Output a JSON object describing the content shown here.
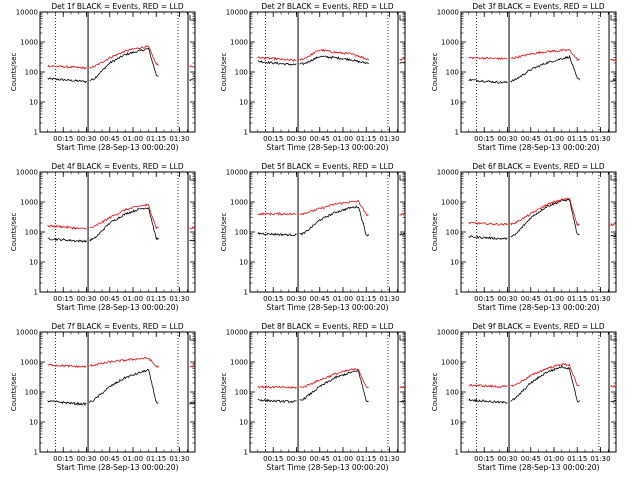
{
  "colors": {
    "events": "#000000",
    "lld": "#e01010"
  },
  "chart_data": [
    {
      "type": "line",
      "title": "Det 1f BLACK = Events, RED = LLD",
      "xlabel": "Start Time (28-Sep-13 00:00:20)",
      "ylabel": "Counts/sec",
      "yscale": "log",
      "ylim": [
        1,
        10000
      ],
      "ytick_labels": [
        "1",
        "10",
        "100",
        "1000",
        "10000"
      ],
      "xtick_labels": [
        "00:15",
        "00:30",
        "00:45",
        "01:00",
        "01:15",
        "01:30"
      ],
      "x": [
        "00:05",
        "00:15",
        "00:25",
        "00:30",
        "00:35",
        "00:45",
        "00:55",
        "01:05",
        "01:10",
        "01:15",
        "01:25",
        "01:35",
        "01:40"
      ],
      "series": [
        {
          "values": [
            60,
            55,
            50,
            48,
            60,
            200,
            380,
            520,
            600,
            80,
            45,
            50,
            60
          ]
        },
        {
          "values": [
            160,
            150,
            140,
            135,
            150,
            300,
            500,
            650,
            700,
            180,
            150,
            150,
            160
          ]
        }
      ]
    },
    {
      "type": "line",
      "title": "Det 2f BLACK = Events, RED = LLD",
      "xlabel": "Start Time (28-Sep-13 00:00:20)",
      "ylabel": "Counts/sec",
      "yscale": "log",
      "ylim": [
        1,
        10000
      ],
      "ytick_labels": [
        "1",
        "10",
        "100",
        "1000",
        "10000"
      ],
      "xtick_labels": [
        "00:15",
        "00:30",
        "00:45",
        "01:00",
        "01:15",
        "01:30"
      ],
      "x": [
        "00:05",
        "00:15",
        "00:25",
        "00:30",
        "00:35",
        "00:45",
        "00:55",
        "01:05",
        "01:10",
        "01:15",
        "01:25",
        "01:35",
        "01:40"
      ],
      "series": [
        {
          "values": [
            230,
            200,
            180,
            175,
            190,
            330,
            300,
            260,
            220,
            200,
            200,
            200,
            210
          ]
        },
        {
          "values": [
            300,
            280,
            250,
            240,
            280,
            550,
            450,
            400,
            350,
            270,
            260,
            260,
            270
          ]
        }
      ]
    },
    {
      "type": "line",
      "title": "Det 3f BLACK = Events, RED = LLD",
      "xlabel": "Start Time (28-Sep-13 00:00:20)",
      "ylabel": "Counts/sec",
      "yscale": "log",
      "ylim": [
        1,
        10000
      ],
      "ytick_labels": [
        "1",
        "10",
        "100",
        "1000",
        "10000"
      ],
      "xtick_labels": [
        "00:15",
        "00:30",
        "00:45",
        "01:00",
        "01:15",
        "01:30"
      ],
      "x": [
        "00:05",
        "00:15",
        "00:25",
        "00:30",
        "00:35",
        "00:45",
        "00:55",
        "01:05",
        "01:10",
        "01:15",
        "01:25",
        "01:35",
        "01:40"
      ],
      "series": [
        {
          "values": [
            55,
            50,
            45,
            45,
            55,
            120,
            200,
            280,
            320,
            60,
            45,
            50,
            55
          ]
        },
        {
          "values": [
            300,
            290,
            280,
            280,
            300,
            400,
            480,
            520,
            540,
            260,
            250,
            250,
            260
          ]
        }
      ]
    },
    {
      "type": "line",
      "title": "Det 4f BLACK = Events, RED = LLD",
      "xlabel": "Start Time (28-Sep-13 00:00:20)",
      "ylabel": "Counts/sec",
      "yscale": "log",
      "ylim": [
        1,
        10000
      ],
      "ytick_labels": [
        "1",
        "10",
        "100",
        "1000",
        "10000"
      ],
      "xtick_labels": [
        "00:15",
        "00:30",
        "00:45",
        "01:00",
        "01:15",
        "01:30"
      ],
      "x": [
        "00:05",
        "00:15",
        "00:25",
        "00:30",
        "00:35",
        "00:45",
        "00:55",
        "01:05",
        "01:10",
        "01:15",
        "01:25",
        "01:35",
        "01:40"
      ],
      "series": [
        {
          "values": [
            60,
            55,
            50,
            50,
            60,
            200,
            400,
            600,
            650,
            60,
            50,
            50,
            55
          ]
        },
        {
          "values": [
            160,
            150,
            130,
            130,
            150,
            300,
            550,
            750,
            800,
            140,
            130,
            130,
            140
          ]
        }
      ]
    },
    {
      "type": "line",
      "title": "Det 5f BLACK = Events, RED = LLD",
      "xlabel": "Start Time (28-Sep-13 00:00:20)",
      "ylabel": "Counts/sec",
      "yscale": "log",
      "ylim": [
        1,
        10000
      ],
      "ytick_labels": [
        "1",
        "10",
        "100",
        "1000",
        "10000"
      ],
      "xtick_labels": [
        "00:15",
        "00:30",
        "00:45",
        "01:00",
        "01:15",
        "01:30"
      ],
      "x": [
        "00:05",
        "00:15",
        "00:25",
        "00:30",
        "00:35",
        "00:45",
        "00:55",
        "01:05",
        "01:10",
        "01:15",
        "01:25",
        "01:35",
        "01:40"
      ],
      "series": [
        {
          "values": [
            90,
            85,
            80,
            80,
            90,
            250,
            450,
            650,
            700,
            80,
            80,
            80,
            85
          ]
        },
        {
          "values": [
            400,
            400,
            400,
            390,
            420,
            600,
            850,
            1000,
            1050,
            380,
            380,
            380,
            390
          ]
        }
      ]
    },
    {
      "type": "line",
      "title": "Det 6f BLACK = Events, RED = LLD",
      "xlabel": "Start Time (28-Sep-13 00:00:20)",
      "ylabel": "Counts/sec",
      "yscale": "log",
      "ylim": [
        1,
        10000
      ],
      "ytick_labels": [
        "1",
        "10",
        "100",
        "1000",
        "10000"
      ],
      "xtick_labels": [
        "00:15",
        "00:30",
        "00:45",
        "01:00",
        "01:15",
        "01:30"
      ],
      "x": [
        "00:05",
        "00:15",
        "00:25",
        "00:30",
        "00:35",
        "00:45",
        "00:55",
        "01:05",
        "01:10",
        "01:15",
        "01:25",
        "01:35",
        "01:40"
      ],
      "series": [
        {
          "values": [
            70,
            65,
            60,
            60,
            80,
            300,
            700,
            1100,
            1200,
            80,
            70,
            70,
            75
          ]
        },
        {
          "values": [
            200,
            190,
            180,
            180,
            200,
            400,
            800,
            1200,
            1300,
            180,
            170,
            170,
            180
          ]
        }
      ]
    },
    {
      "type": "line",
      "title": "Det 7f BLACK = Events, RED = LLD",
      "xlabel": "Start Time (28-Sep-13 00:00:20)",
      "ylabel": "Counts/sec",
      "yscale": "log",
      "ylim": [
        1,
        10000
      ],
      "ytick_labels": [
        "1",
        "10",
        "100",
        "1000",
        "10000"
      ],
      "xtick_labels": [
        "00:15",
        "00:30",
        "00:45",
        "01:00",
        "01:15",
        "01:30"
      ],
      "x": [
        "00:05",
        "00:15",
        "00:25",
        "00:30",
        "00:35",
        "00:45",
        "00:55",
        "01:05",
        "01:10",
        "01:15",
        "01:25",
        "01:35",
        "01:40"
      ],
      "series": [
        {
          "values": [
            50,
            45,
            40,
            40,
            55,
            150,
            300,
            450,
            550,
            45,
            40,
            40,
            45
          ]
        },
        {
          "values": [
            800,
            750,
            700,
            700,
            800,
            1000,
            1150,
            1300,
            1350,
            700,
            700,
            700,
            720
          ]
        }
      ]
    },
    {
      "type": "line",
      "title": "Det 8f BLACK = Events, RED = LLD",
      "xlabel": "Start Time (28-Sep-13 00:00:20)",
      "ylabel": "Counts/sec",
      "yscale": "log",
      "ylim": [
        1,
        10000
      ],
      "ytick_labels": [
        "1",
        "10",
        "100",
        "1000",
        "10000"
      ],
      "xtick_labels": [
        "00:15",
        "00:30",
        "00:45",
        "01:00",
        "01:15",
        "01:30"
      ],
      "x": [
        "00:05",
        "00:15",
        "00:25",
        "00:30",
        "00:35",
        "00:45",
        "00:55",
        "01:05",
        "01:10",
        "01:15",
        "01:25",
        "01:35",
        "01:40"
      ],
      "series": [
        {
          "values": [
            55,
            50,
            48,
            48,
            60,
            150,
            300,
            450,
            500,
            50,
            48,
            48,
            50
          ]
        },
        {
          "values": [
            150,
            145,
            140,
            140,
            150,
            250,
            400,
            550,
            580,
            140,
            140,
            140,
            145
          ]
        }
      ]
    },
    {
      "type": "line",
      "title": "Det 9f BLACK = Events, RED = LLD",
      "xlabel": "Start Time (28-Sep-13 00:00:20)",
      "ylabel": "Counts/sec",
      "yscale": "log",
      "ylim": [
        1,
        10000
      ],
      "ytick_labels": [
        "1",
        "10",
        "100",
        "1000",
        "10000"
      ],
      "xtick_labels": [
        "00:15",
        "00:30",
        "00:45",
        "01:00",
        "01:15",
        "01:30"
      ],
      "x": [
        "00:05",
        "00:15",
        "00:25",
        "00:30",
        "00:35",
        "00:45",
        "00:55",
        "01:05",
        "01:10",
        "01:15",
        "01:25",
        "01:35",
        "01:40"
      ],
      "series": [
        {
          "values": [
            55,
            50,
            45,
            45,
            60,
            200,
            450,
            700,
            600,
            50,
            45,
            45,
            50
          ]
        },
        {
          "values": [
            170,
            160,
            150,
            150,
            170,
            350,
            600,
            850,
            800,
            160,
            150,
            150,
            160
          ]
        }
      ]
    }
  ]
}
